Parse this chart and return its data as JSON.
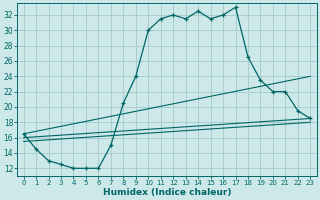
{
  "title": "",
  "xlabel": "Humidex (Indice chaleur)",
  "ylabel": "",
  "bg_color": "#cce8e8",
  "grid_color": "#aacccc",
  "line_color": "#006666",
  "x_ticks": [
    0,
    1,
    2,
    3,
    4,
    5,
    6,
    7,
    8,
    9,
    10,
    11,
    12,
    13,
    14,
    15,
    16,
    17,
    18,
    19,
    20,
    21,
    22,
    23
  ],
  "y_ticks": [
    12,
    14,
    16,
    18,
    20,
    22,
    24,
    26,
    28,
    30,
    32
  ],
  "ylim": [
    11.0,
    33.5
  ],
  "xlim": [
    -0.5,
    23.5
  ],
  "main_series": [
    [
      0,
      16.5
    ],
    [
      1,
      14.5
    ],
    [
      2,
      13.0
    ],
    [
      3,
      12.5
    ],
    [
      4,
      12.0
    ],
    [
      5,
      12.0
    ],
    [
      6,
      12.0
    ],
    [
      7,
      15.0
    ],
    [
      8,
      20.5
    ],
    [
      9,
      24.0
    ],
    [
      10,
      30.0
    ],
    [
      11,
      31.5
    ],
    [
      12,
      32.0
    ],
    [
      13,
      31.5
    ],
    [
      14,
      32.5
    ],
    [
      15,
      31.5
    ],
    [
      16,
      32.0
    ],
    [
      17,
      33.0
    ],
    [
      18,
      26.5
    ],
    [
      19,
      23.5
    ],
    [
      20,
      22.0
    ],
    [
      21,
      22.0
    ],
    [
      22,
      19.5
    ],
    [
      23,
      18.5
    ]
  ],
  "ref_line1": [
    [
      0,
      16.5
    ],
    [
      23,
      24.0
    ]
  ],
  "ref_line2": [
    [
      0,
      16.0
    ],
    [
      23,
      18.5
    ]
  ],
  "ref_line3": [
    [
      0,
      15.5
    ],
    [
      23,
      18.0
    ]
  ]
}
